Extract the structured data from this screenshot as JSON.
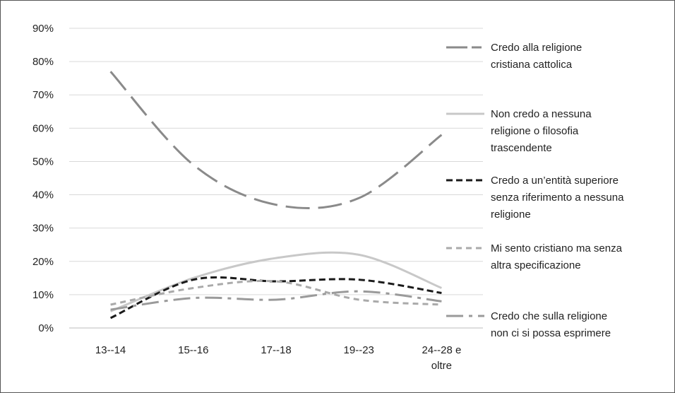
{
  "chart_data": {
    "type": "line",
    "categories": [
      "13--14",
      "15--16",
      "17--18",
      "19--23",
      "24--28 e oltre"
    ],
    "category_lines": [
      [
        "13--14"
      ],
      [
        "15--16"
      ],
      [
        "17--18"
      ],
      [
        "19--23"
      ],
      [
        "24--28 e",
        "oltre"
      ]
    ],
    "ylim": [
      0,
      90
    ],
    "y_ticks": [
      "0%",
      "10%",
      "20%",
      "30%",
      "40%",
      "50%",
      "60%",
      "70%",
      "80%",
      "90%"
    ],
    "y_tick_values": [
      0,
      10,
      20,
      30,
      40,
      50,
      60,
      70,
      80,
      90
    ],
    "grid": true,
    "legend_position": "right",
    "series": [
      {
        "name": "Credo alla religione cristiana cattolica",
        "legend_lines": [
          "Credo alla religione",
          "cristiana cattolica"
        ],
        "values": [
          77,
          49,
          37,
          39,
          58
        ],
        "color": "#8a8a8a",
        "style": "long-dash"
      },
      {
        "name": "Non credo a nessuna religione o filosofia trascendente",
        "legend_lines": [
          "Non credo a nessuna",
          "religione o filosofia",
          "trascendente"
        ],
        "values": [
          5,
          15,
          21,
          22,
          12
        ],
        "color": "#c8c8c8",
        "style": "solid"
      },
      {
        "name": "Credo a un'entità superiore senza riferimento a nessuna religione",
        "legend_lines": [
          "Credo a un’entità superiore",
          "senza riferimento a nessuna",
          "religione"
        ],
        "values": [
          3,
          14.5,
          14,
          14.5,
          10.5
        ],
        "color": "#1a1a1a",
        "style": "dash"
      },
      {
        "name": "Mi sento cristiano ma senza altra specificazione",
        "legend_lines": [
          "Mi sento cristiano ma senza",
          "altra specificazione"
        ],
        "values": [
          7,
          12,
          14,
          8.5,
          7
        ],
        "color": "#aaaaaa",
        "style": "short-dash"
      },
      {
        "name": "Credo che sulla religione non ci si possa esprimere",
        "legend_lines": [
          "Credo che sulla religione",
          "non ci si possa esprimere"
        ],
        "values": [
          5.5,
          9,
          8.5,
          11,
          8
        ],
        "color": "#9a9a9a",
        "style": "dash-dot"
      }
    ]
  }
}
